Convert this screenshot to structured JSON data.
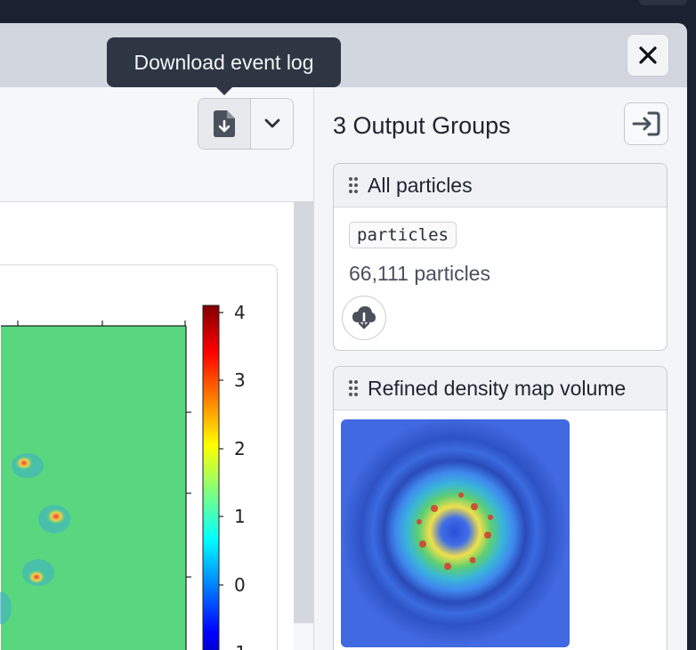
{
  "tooltip": {
    "text": "Download event log"
  },
  "toolbar": {
    "download_icon": "file-download-icon",
    "chevron_icon": "chevron-down-icon"
  },
  "close": {
    "icon": "close-icon"
  },
  "plot": {
    "colorbar_ticks": [
      "4",
      "3",
      "2",
      "1",
      "0",
      "-1"
    ],
    "colormap": "jet"
  },
  "output_groups": {
    "title": "3 Output Groups",
    "collapse_icon": "sign-in-icon",
    "groups": [
      {
        "title": "All particles",
        "tag": "particles",
        "count": "66,111 particles",
        "download_icon": "cloud-download-icon"
      },
      {
        "title": "Refined density map volume"
      }
    ]
  },
  "colors": {
    "accent": "#1f2430",
    "panel_bg": "#d2d6de",
    "tooltip_bg": "#2e3644"
  }
}
